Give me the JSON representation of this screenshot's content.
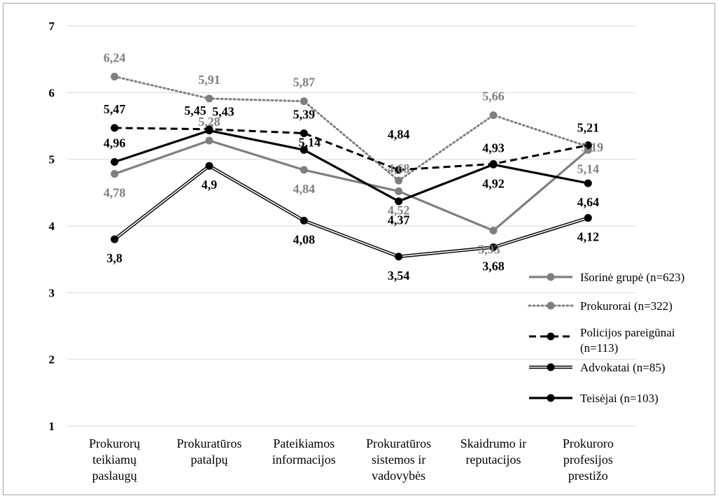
{
  "chart_data": {
    "type": "line",
    "categories": [
      [
        "Prokurorų",
        "teikiamų",
        "paslaugų"
      ],
      [
        "Prokuratūros",
        "patalpų"
      ],
      [
        "Pateikiamos",
        "informacijos"
      ],
      [
        "Prokuratūros",
        "sistemos ir",
        "vadovybės"
      ],
      [
        "Skaidrumo ir",
        "reputacijos"
      ],
      [
        "Prokuroro",
        "profesijos",
        "prestižo"
      ]
    ],
    "ylim": [
      1,
      7
    ],
    "yticks": [
      "1",
      "2",
      "3",
      "4",
      "5",
      "6",
      "7"
    ],
    "grid": true,
    "legend_position": "right",
    "series": [
      {
        "name": "Išorinė grupė (n=623)",
        "style": "solid-gray",
        "color": "#7f7f7f",
        "values": [
          4.78,
          5.28,
          4.84,
          4.52,
          3.93,
          5.14
        ],
        "labels": [
          "4,78",
          "5,28",
          "4,84",
          "4,52",
          "3,93",
          "5,14"
        ]
      },
      {
        "name": "Prokurorai (n=322)",
        "style": "dotted-gray",
        "color": "#7f7f7f",
        "values": [
          6.24,
          5.91,
          5.87,
          4.68,
          5.66,
          5.19
        ],
        "labels": [
          "6,24",
          "5,91",
          "5,87",
          "4,68",
          "5,66",
          "5,19"
        ]
      },
      {
        "name": "Policijos pareigūnai (n=113)",
        "style": "dashed-black",
        "color": "#000000",
        "values": [
          5.47,
          5.45,
          5.39,
          4.84,
          4.93,
          5.21
        ],
        "labels": [
          "5,47",
          "5,45",
          "5,39",
          "4,84",
          "4,93",
          "5,21"
        ]
      },
      {
        "name": "Advokatai (n=85)",
        "style": "double-black",
        "color": "#000000",
        "values": [
          3.8,
          4.9,
          4.08,
          3.54,
          3.68,
          4.12
        ],
        "labels": [
          "3,8",
          "4,9",
          "4,08",
          "3,54",
          "3,68",
          "4,12"
        ]
      },
      {
        "name": "Teisėjai (n=103)",
        "style": "solid-black",
        "color": "#000000",
        "values": [
          4.96,
          5.43,
          5.14,
          4.37,
          4.92,
          4.64
        ],
        "labels": [
          "4,96",
          "5,43",
          "5,14",
          "4,37",
          "4,92",
          "4,64"
        ]
      }
    ]
  }
}
